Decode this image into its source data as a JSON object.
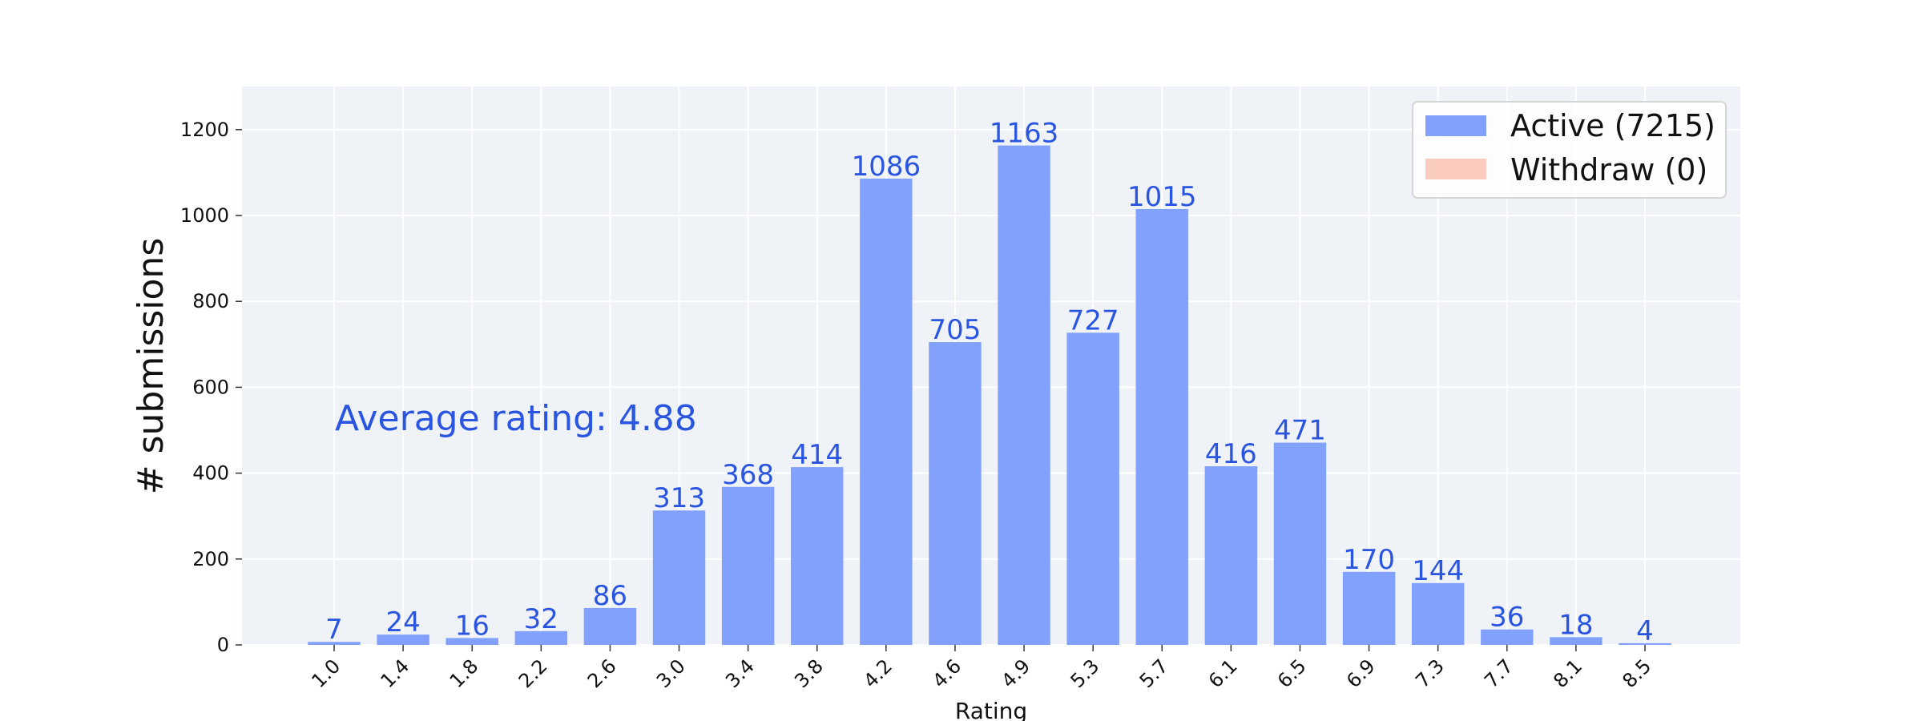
{
  "chart_data": {
    "type": "bar",
    "categories": [
      "1.0",
      "1.4",
      "1.8",
      "2.2",
      "2.6",
      "3.0",
      "3.4",
      "3.8",
      "4.2",
      "4.6",
      "4.9",
      "5.3",
      "5.7",
      "6.1",
      "6.5",
      "6.9",
      "7.3",
      "7.7",
      "8.1",
      "8.5"
    ],
    "series": [
      {
        "name": "Active (7215)",
        "color": "#82a1fc",
        "values": [
          7,
          24,
          16,
          32,
          86,
          313,
          368,
          414,
          1086,
          705,
          1163,
          727,
          1015,
          416,
          471,
          170,
          144,
          36,
          18,
          4
        ]
      },
      {
        "name": "Withdraw (0)",
        "color": "#fccbbf",
        "values": [
          0,
          0,
          0,
          0,
          0,
          0,
          0,
          0,
          0,
          0,
          0,
          0,
          0,
          0,
          0,
          0,
          0,
          0,
          0,
          0
        ]
      }
    ],
    "data_labels": [
      "7",
      "24",
      "16",
      "32",
      "86",
      "313",
      "368",
      "414",
      "1086",
      "705",
      "1163",
      "727",
      "1015",
      "416",
      "471",
      "170",
      "144",
      "36",
      "18",
      "4"
    ],
    "xlabel": "Rating",
    "ylabel": "# submissions",
    "ylim": [
      0,
      1300
    ],
    "yticks": [
      0,
      200,
      400,
      600,
      800,
      1000,
      1200
    ],
    "ytick_labels": [
      "0",
      "200",
      "400",
      "600",
      "800",
      "1000",
      "1200"
    ],
    "annotation": "Average rating: 4.88",
    "grid": true,
    "legend_position": "top-right",
    "colors": {
      "plot_background": "#eff2f7",
      "grid": "#ffffff",
      "label_text": "#2a55e0"
    }
  }
}
